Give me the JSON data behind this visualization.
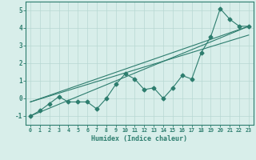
{
  "x_data": [
    0,
    1,
    2,
    3,
    4,
    5,
    6,
    7,
    8,
    9,
    10,
    11,
    12,
    13,
    14,
    15,
    16,
    17,
    18,
    19,
    20,
    21,
    22,
    23
  ],
  "y_data": [
    -1.0,
    -0.7,
    -0.3,
    0.1,
    -0.2,
    -0.2,
    -0.2,
    -0.6,
    0.0,
    0.8,
    1.4,
    1.1,
    0.5,
    0.6,
    0.0,
    0.6,
    1.3,
    1.1,
    2.6,
    3.5,
    5.1,
    4.5,
    4.1,
    4.1
  ],
  "trend_line1_x": [
    0,
    23
  ],
  "trend_line1_y": [
    -1.0,
    4.1
  ],
  "trend_line2_x": [
    0,
    23
  ],
  "trend_line2_y": [
    -0.2,
    3.6
  ],
  "trend_line3_x": [
    0,
    23
  ],
  "trend_line3_y": [
    -0.2,
    4.1
  ],
  "color": "#2d7d6e",
  "bg_color": "#d8eeea",
  "grid_color": "#b8d8d2",
  "xlabel": "Humidex (Indice chaleur)",
  "xlim": [
    -0.5,
    23.5
  ],
  "ylim": [
    -1.5,
    5.5
  ],
  "yticks": [
    -1,
    0,
    1,
    2,
    3,
    4,
    5
  ],
  "xticks": [
    0,
    1,
    2,
    3,
    4,
    5,
    6,
    7,
    8,
    9,
    10,
    11,
    12,
    13,
    14,
    15,
    16,
    17,
    18,
    19,
    20,
    21,
    22,
    23
  ]
}
